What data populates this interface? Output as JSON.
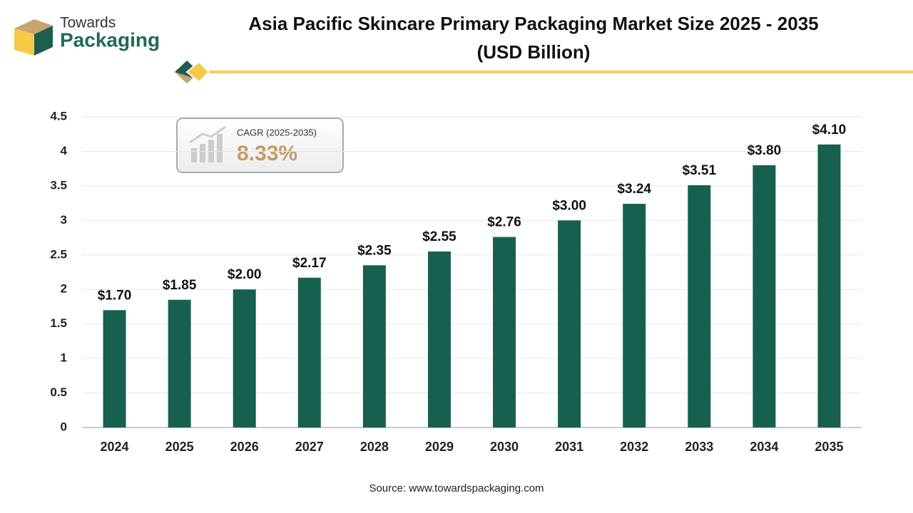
{
  "logo": {
    "line1": "Towards",
    "line2": "Packaging"
  },
  "chart_data": {
    "type": "bar",
    "title": "Asia Pacific Skincare Primary Packaging Market Size 2025 - 2035",
    "subtitle": "(USD Billion)",
    "categories": [
      "2024",
      "2025",
      "2026",
      "2027",
      "2028",
      "2029",
      "2030",
      "2031",
      "2032",
      "2033",
      "2034",
      "2035"
    ],
    "values": [
      1.7,
      1.85,
      2.0,
      2.17,
      2.35,
      2.55,
      2.76,
      3.0,
      3.24,
      3.51,
      3.8,
      4.1
    ],
    "value_labels": [
      "$1.70",
      "$1.85",
      "$2.00",
      "$2.17",
      "$2.35",
      "$2.55",
      "$2.76",
      "$3.00",
      "$3.24",
      "$3.51",
      "$3.80",
      "$4.10"
    ],
    "color": "#17604f",
    "ylim": [
      0,
      4.5
    ],
    "yticks": [
      0,
      0.5,
      1,
      1.5,
      2,
      2.5,
      3,
      3.5,
      4,
      4.5
    ],
    "grid": true,
    "annotations": [
      "CAGR (2025-2035)",
      "8.33%"
    ],
    "source": "Source: www.towardspackaging.com"
  }
}
